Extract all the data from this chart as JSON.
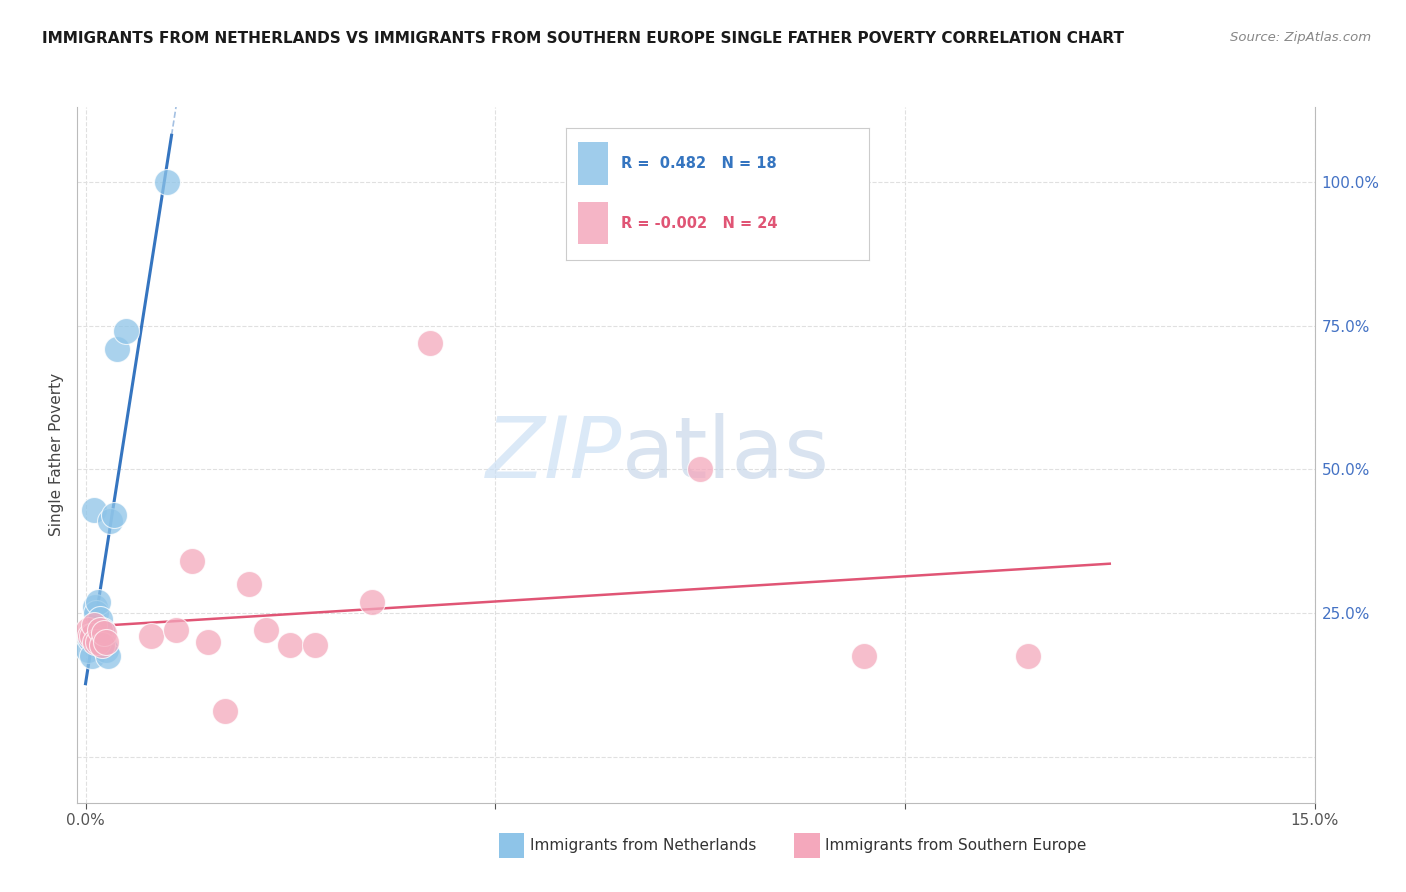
{
  "title": "IMMIGRANTS FROM NETHERLANDS VS IMMIGRANTS FROM SOUTHERN EUROPE SINGLE FATHER POVERTY CORRELATION CHART",
  "source": "Source: ZipAtlas.com",
  "ylabel": "Single Father Poverty",
  "netherlands_color": "#8ec4e8",
  "southern_europe_color": "#f4a8bc",
  "netherlands_line_color": "#3575c0",
  "southern_europe_line_color": "#e05575",
  "netherlands_r": 0.482,
  "netherlands_n": 18,
  "southern_europe_r": -0.002,
  "southern_europe_n": 24,
  "netherlands_x": [
    0.0003,
    0.0005,
    0.0008,
    0.0008,
    0.001,
    0.0012,
    0.0013,
    0.0015,
    0.0018,
    0.002,
    0.0022,
    0.0025,
    0.0028,
    0.003,
    0.0035,
    0.0038,
    0.005,
    0.01
  ],
  "netherlands_y": [
    0.185,
    0.205,
    0.175,
    0.215,
    0.43,
    0.26,
    0.25,
    0.27,
    0.24,
    0.22,
    0.195,
    0.185,
    0.175,
    0.41,
    0.42,
    0.71,
    0.74,
    1.0
  ],
  "southern_europe_x": [
    0.0003,
    0.0005,
    0.0008,
    0.001,
    0.0012,
    0.0015,
    0.0018,
    0.002,
    0.0022,
    0.0025,
    0.008,
    0.011,
    0.013,
    0.015,
    0.017,
    0.02,
    0.022,
    0.025,
    0.028,
    0.035,
    0.042,
    0.075,
    0.095,
    0.115
  ],
  "southern_europe_y": [
    0.22,
    0.21,
    0.21,
    0.23,
    0.2,
    0.2,
    0.22,
    0.195,
    0.215,
    0.2,
    0.21,
    0.22,
    0.34,
    0.2,
    0.08,
    0.3,
    0.22,
    0.195,
    0.195,
    0.27,
    0.72,
    0.5,
    0.175,
    0.175
  ],
  "watermark_zip": "ZIP",
  "watermark_atlas": "atlas",
  "background_color": "#ffffff",
  "grid_color": "#e0e0e0",
  "xlim": [
    -0.001,
    0.127
  ],
  "ylim": [
    -0.08,
    1.13
  ],
  "x_ticks": [
    0.0,
    0.05,
    0.1
  ],
  "y_ticks": [
    0.0,
    0.25,
    0.5,
    0.75,
    1.0
  ],
  "y_tick_labels": [
    "",
    "25.0%",
    "50.0%",
    "75.0%",
    "100.0%"
  ]
}
